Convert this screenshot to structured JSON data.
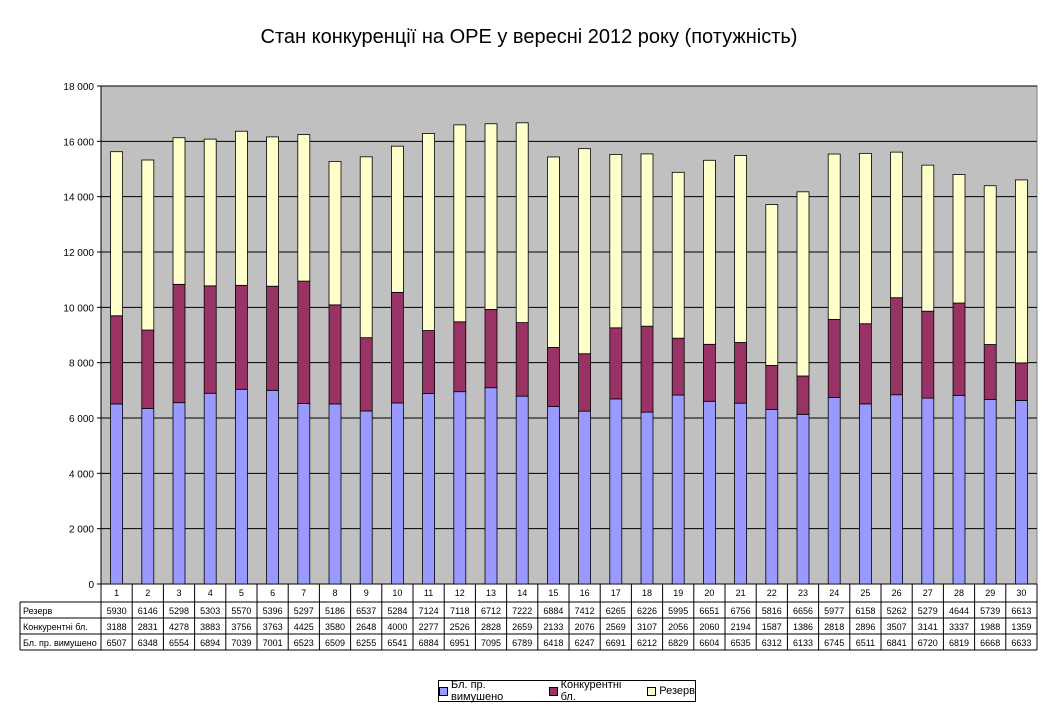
{
  "chart_data": {
    "type": "bar",
    "stacked": true,
    "title": "Стан конкуренції на ОРЕ  у вересні 2012 року (потужність)",
    "categories": [
      "1",
      "2",
      "3",
      "4",
      "5",
      "6",
      "7",
      "8",
      "9",
      "10",
      "11",
      "12",
      "13",
      "14",
      "15",
      "16",
      "17",
      "18",
      "19",
      "20",
      "21",
      "22",
      "23",
      "24",
      "25",
      "26",
      "27",
      "28",
      "29",
      "30"
    ],
    "series": [
      {
        "name": "Бл. пр. вимушено",
        "color": "#9999ff",
        "values": [
          6507,
          6348,
          6554,
          6894,
          7039,
          7001,
          6523,
          6509,
          6255,
          6541,
          6884,
          6951,
          7095,
          6789,
          6418,
          6247,
          6691,
          6212,
          6829,
          6604,
          6535,
          6312,
          6133,
          6745,
          6511,
          6841,
          6720,
          6819,
          6668,
          6633
        ]
      },
      {
        "name": "Конкурентні бл.",
        "color": "#993366",
        "values": [
          3188,
          2831,
          4278,
          3883,
          3756,
          3763,
          4425,
          3580,
          2648,
          4000,
          2277,
          2526,
          2828,
          2659,
          2133,
          2076,
          2569,
          3107,
          2056,
          2060,
          2194,
          1587,
          1386,
          2818,
          2896,
          3507,
          3141,
          3337,
          1988,
          1359
        ]
      },
      {
        "name": "Резерв",
        "color": "#ffffcc",
        "values": [
          5930,
          6146,
          5298,
          5303,
          5570,
          5396,
          5297,
          5186,
          6537,
          5284,
          7124,
          7118,
          6712,
          7222,
          6884,
          7412,
          6265,
          6226,
          5995,
          6651,
          6756,
          5816,
          6656,
          5977,
          6158,
          5262,
          5279,
          4644,
          5739,
          6613
        ]
      }
    ],
    "ylim": [
      0,
      18000
    ],
    "yticks": [
      0,
      2000,
      4000,
      6000,
      8000,
      10000,
      12000,
      14000,
      16000,
      18000
    ],
    "ytick_labels": [
      "0",
      "2 000",
      "4 000",
      "6 000",
      "8 000",
      "10 000",
      "12 000",
      "14 000",
      "16 000",
      "18 000"
    ],
    "grid": true,
    "plot_background": "#c0c0c0",
    "legend_position": "bottom",
    "data_table": true
  }
}
